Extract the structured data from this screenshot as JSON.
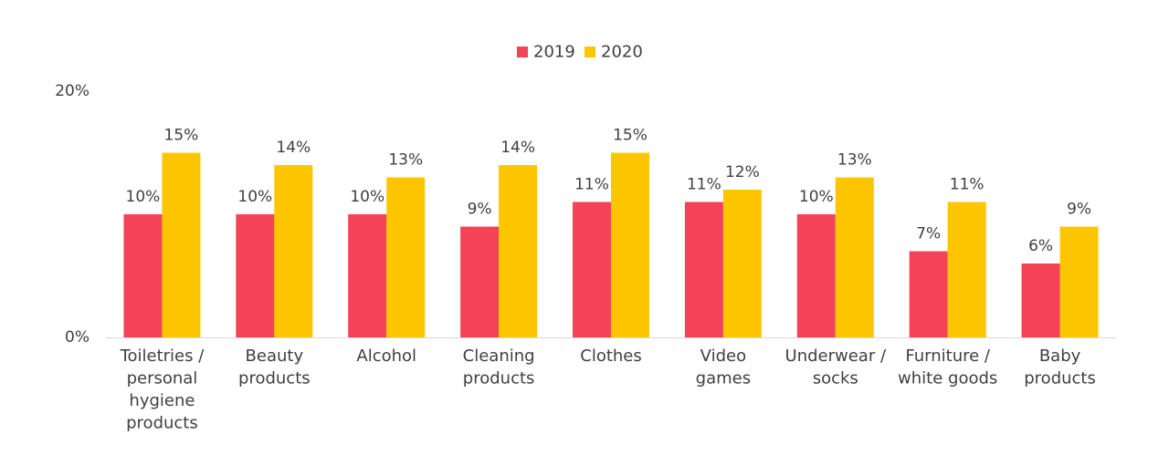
{
  "chart_data": {
    "type": "bar",
    "categories": [
      [
        "Toiletries /",
        "personal",
        "hygiene",
        "products"
      ],
      [
        "Beauty",
        "products"
      ],
      [
        "Alcohol"
      ],
      [
        "Cleaning",
        "products"
      ],
      [
        "Clothes"
      ],
      [
        "Video",
        "games"
      ],
      [
        "Underwear /",
        "socks"
      ],
      [
        "Furniture /",
        "white goods"
      ],
      [
        "Baby",
        "products"
      ]
    ],
    "series": [
      {
        "name": "2019",
        "color": "#f44257",
        "values": [
          10,
          10,
          10,
          9,
          11,
          11,
          10,
          7,
          6
        ],
        "labels": [
          "10%",
          "10%",
          "10%",
          "9%",
          "11%",
          "11%",
          "10%",
          "7%",
          "6%"
        ]
      },
      {
        "name": "2020",
        "color": "#fec601",
        "values": [
          15,
          14,
          13,
          14,
          15,
          12,
          13,
          11,
          9
        ],
        "labels": [
          "15%",
          "14%",
          "13%",
          "14%",
          "15%",
          "12%",
          "13%",
          "11%",
          "9%"
        ]
      }
    ],
    "ylim": [
      0,
      20
    ],
    "yticks": [
      {
        "value": 0,
        "label": "0%"
      },
      {
        "value": 20,
        "label": "20%"
      }
    ],
    "legend_position": "top-center",
    "grid": false
  }
}
